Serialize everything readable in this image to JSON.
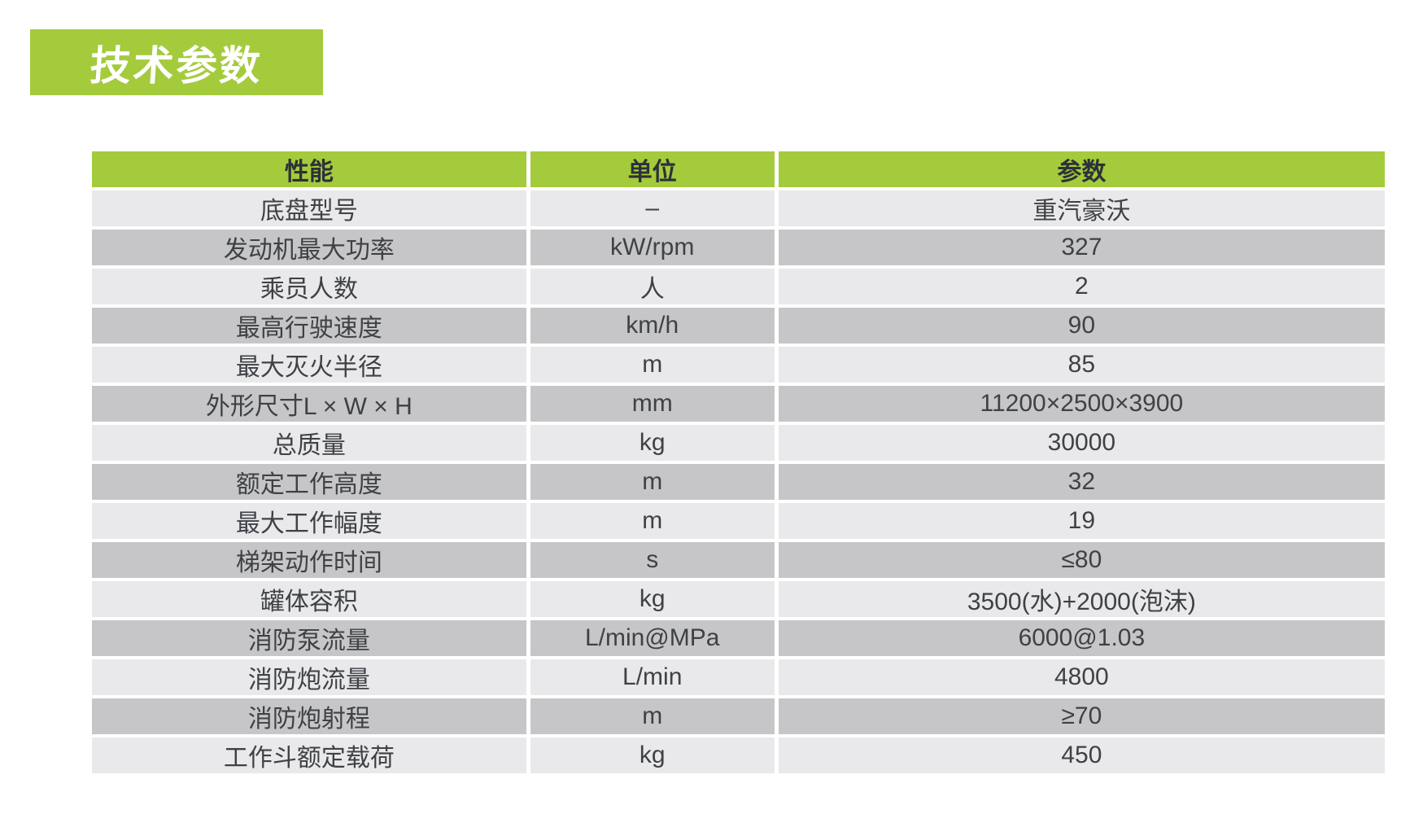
{
  "page": {
    "title_badge": "技术参数"
  },
  "colors": {
    "accent_green": "#a4cb3c",
    "row_light": "#e9e9eb",
    "row_dark": "#c6c6c8",
    "header_text": "#2d3138",
    "cell_text": "#3e4145",
    "badge_text": "#ffffff"
  },
  "table": {
    "columns": [
      "性能",
      "单位",
      "参数"
    ],
    "rows": [
      {
        "label": "底盘型号",
        "unit": "–",
        "value": "重汽豪沃"
      },
      {
        "label": "发动机最大功率",
        "unit": "kW/rpm",
        "value": "327"
      },
      {
        "label": "乘员人数",
        "unit": "人",
        "value": "2"
      },
      {
        "label": "最高行驶速度",
        "unit": "km/h",
        "value": "90"
      },
      {
        "label": "最大灭火半径",
        "unit": "m",
        "value": "85"
      },
      {
        "label": "外形尺寸L × W × H",
        "unit": "mm",
        "value": "11200×2500×3900"
      },
      {
        "label": "总质量",
        "unit": "kg",
        "value": "30000"
      },
      {
        "label": "额定工作高度",
        "unit": "m",
        "value": "32"
      },
      {
        "label": "最大工作幅度",
        "unit": "m",
        "value": "19"
      },
      {
        "label": "梯架动作时间",
        "unit": "s",
        "value": "≤80"
      },
      {
        "label": "罐体容积",
        "unit": "kg",
        "value": "3500(水)+2000(泡沫)"
      },
      {
        "label": "消防泵流量",
        "unit": "L/min@MPa",
        "value": "6000@1.03"
      },
      {
        "label": "消防炮流量",
        "unit": "L/min",
        "value": "4800"
      },
      {
        "label": "消防炮射程",
        "unit": "m",
        "value": "≥70"
      },
      {
        "label": "工作斗额定载荷",
        "unit": "kg",
        "value": "450"
      }
    ]
  }
}
